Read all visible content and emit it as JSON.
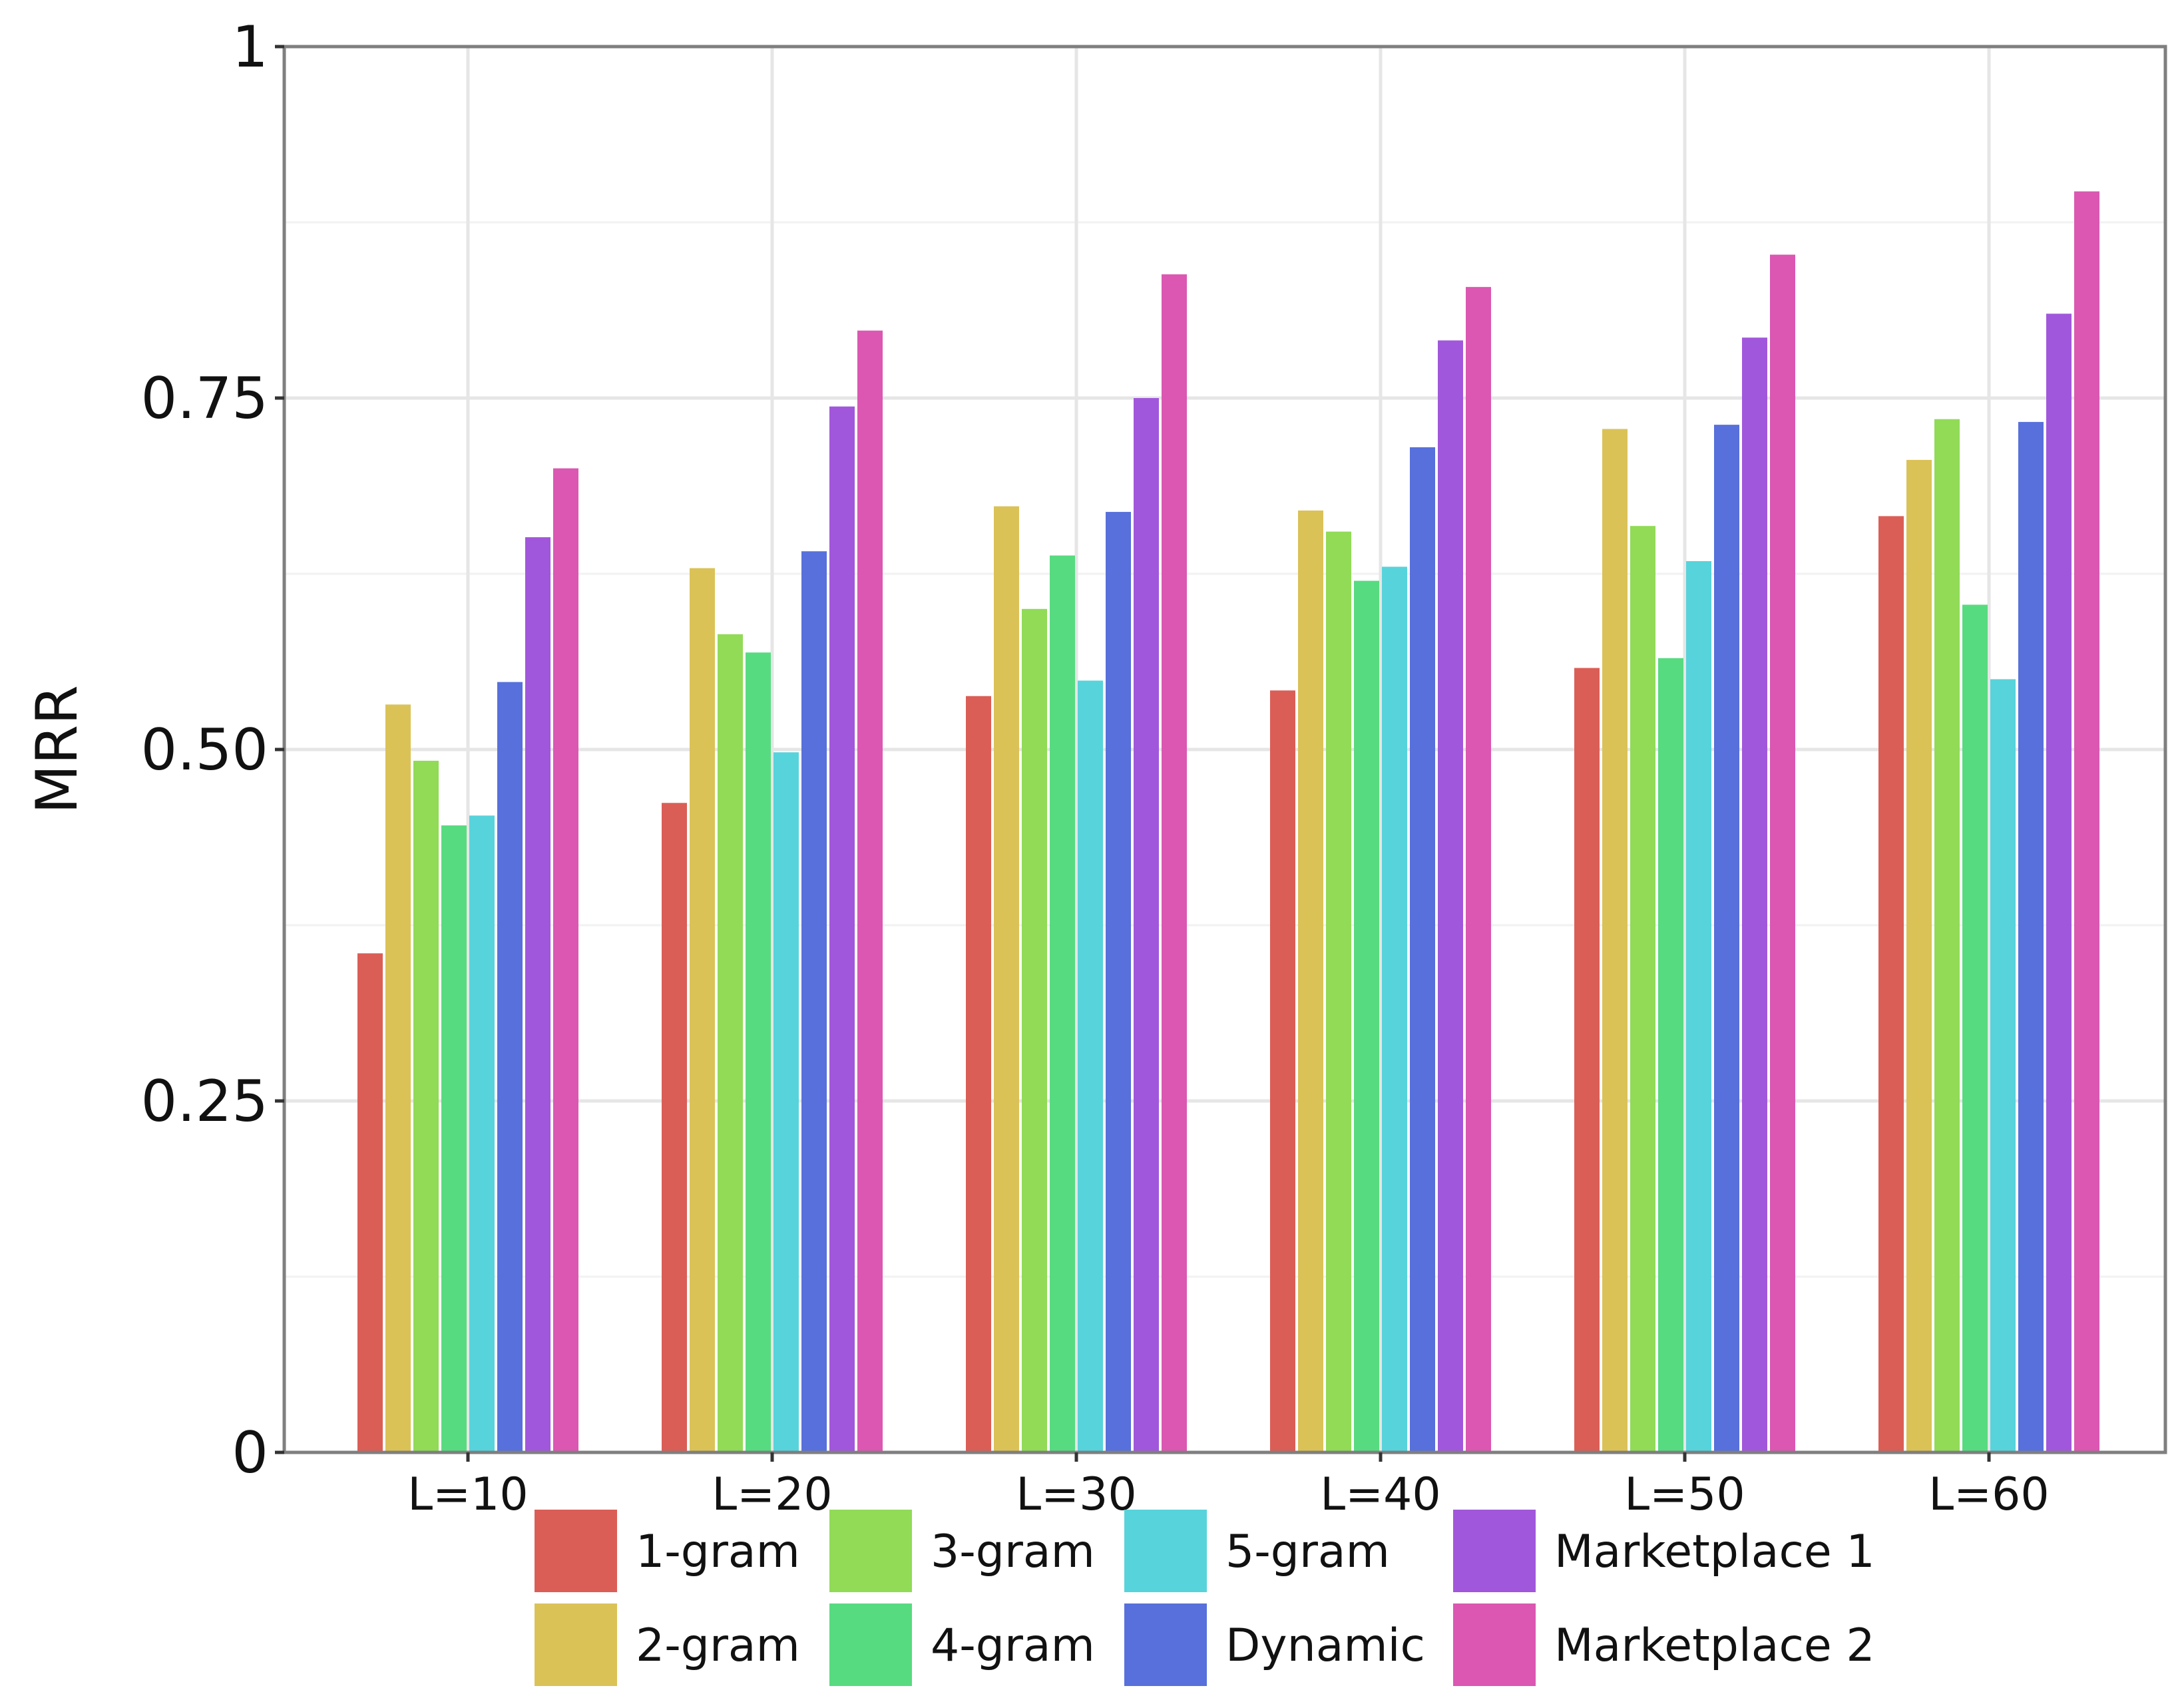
{
  "chart_data": {
    "type": "bar",
    "title": "",
    "xlabel": "",
    "ylabel": "MRR",
    "ylim": [
      0,
      1
    ],
    "yticks": [
      0,
      0.25,
      0.5,
      0.75,
      1
    ],
    "ytick_labels": [
      "0",
      "0.25",
      "0.50",
      "0.75",
      "1"
    ],
    "grid": true,
    "legend_position": "bottom",
    "categories": [
      "L=10",
      "L=20",
      "L=30",
      "L=40",
      "L=50",
      "L=60"
    ],
    "series": [
      {
        "name": "1-gram",
        "color": "#db5e56",
        "values": [
          0.355,
          0.462,
          0.538,
          0.542,
          0.558,
          0.666
        ]
      },
      {
        "name": "2-gram",
        "color": "#dbc257",
        "values": [
          0.532,
          0.629,
          0.673,
          0.67,
          0.728,
          0.706
        ]
      },
      {
        "name": "3-gram",
        "color": "#91db57",
        "values": [
          0.492,
          0.582,
          0.6,
          0.655,
          0.659,
          0.735
        ]
      },
      {
        "name": "4-gram",
        "color": "#57db80",
        "values": [
          0.446,
          0.569,
          0.638,
          0.62,
          0.565,
          0.603
        ]
      },
      {
        "name": "5-gram",
        "color": "#57d3db",
        "values": [
          0.453,
          0.498,
          0.549,
          0.63,
          0.634,
          0.55
        ]
      },
      {
        "name": "Dynamic",
        "color": "#5770db",
        "values": [
          0.548,
          0.641,
          0.669,
          0.715,
          0.731,
          0.733
        ]
      },
      {
        "name": "Marketplace 1",
        "color": "#a157db",
        "values": [
          0.651,
          0.744,
          0.75,
          0.791,
          0.793,
          0.81
        ]
      },
      {
        "name": "Marketplace 2",
        "color": "#db57b2",
        "values": [
          0.7,
          0.798,
          0.838,
          0.829,
          0.852,
          0.897
        ]
      }
    ]
  }
}
